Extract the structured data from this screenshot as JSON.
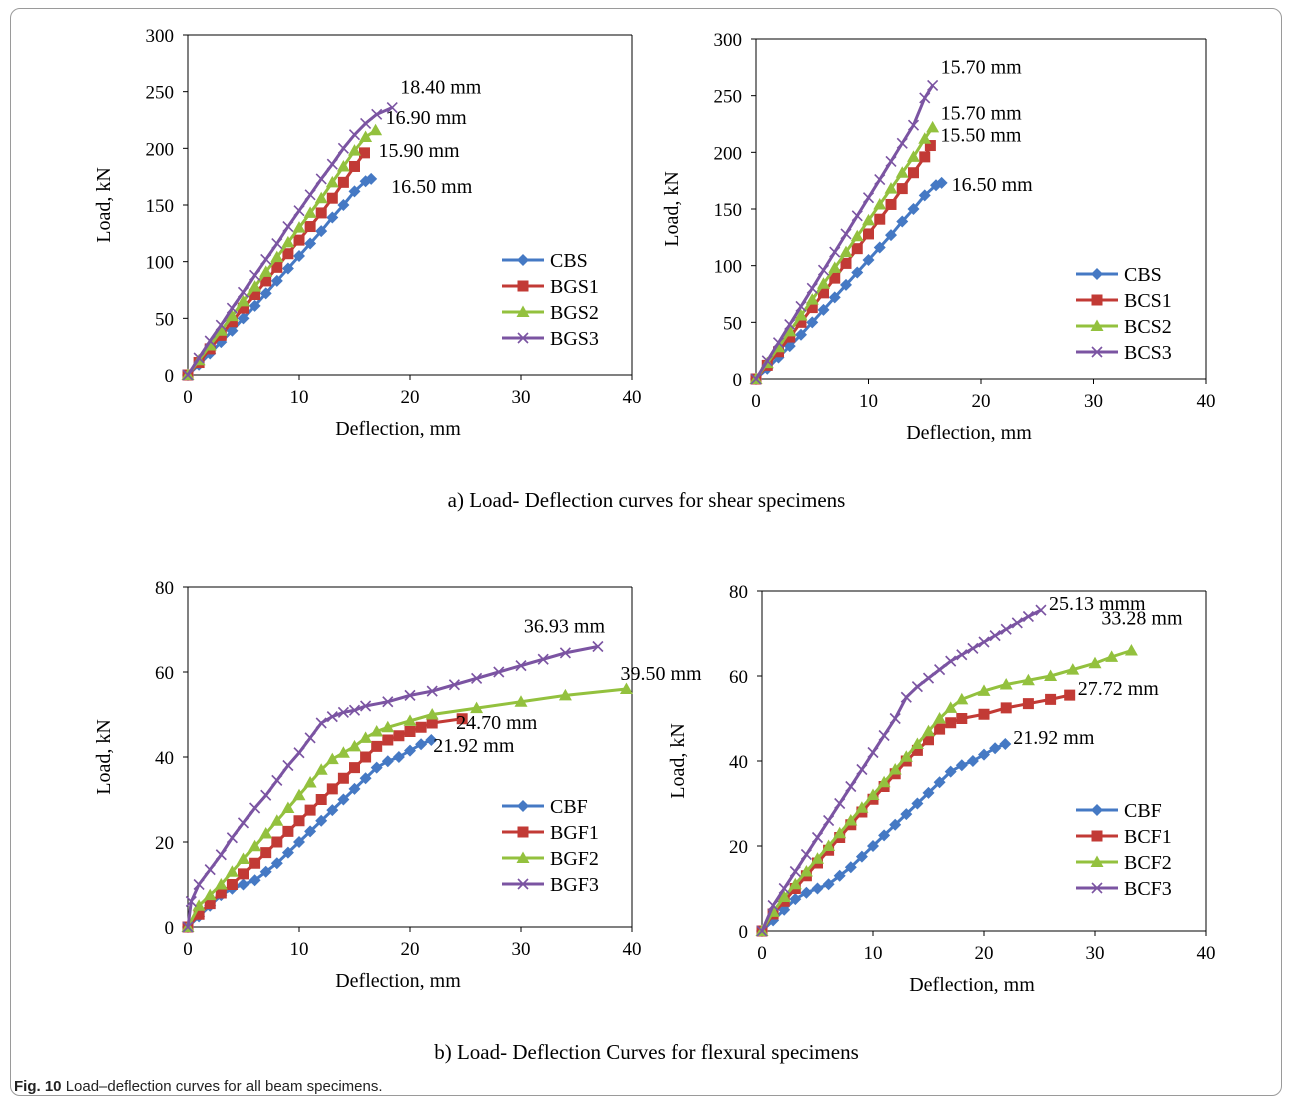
{
  "figure": {
    "label": "Fig. 10",
    "caption": "Load–deflection curves for all beam specimens.",
    "caption_a": "a)   Load- Deflection curves for shear specimens",
    "caption_b": "b)   Load- Deflection Curves for flexural specimens"
  },
  "colors": {
    "s0": "#4579c4",
    "s1": "#c23a35",
    "s2": "#93c13e",
    "s3": "#7b54a2"
  },
  "chart_data": [
    {
      "type": "line",
      "xlabel": "Deflection, mm",
      "ylabel": "Load, kN",
      "xlim": [
        0,
        40
      ],
      "ylim": [
        0,
        300
      ],
      "xticks": [
        0,
        10,
        20,
        30,
        40
      ],
      "yticks": [
        0,
        50,
        100,
        150,
        200,
        250,
        300
      ],
      "legend": "bottom-right",
      "series": [
        {
          "name": "CBS",
          "marker": "diamond",
          "x": [
            0,
            1,
            2,
            3,
            4,
            5,
            6,
            7,
            8,
            9,
            10,
            11,
            12,
            13,
            14,
            15,
            16,
            16.5
          ],
          "y": [
            0,
            9,
            19,
            29,
            39,
            50,
            61,
            72,
            83,
            94,
            105,
            116,
            127,
            139,
            150,
            162,
            171,
            173
          ]
        },
        {
          "name": "BGS1",
          "marker": "square",
          "x": [
            0,
            1,
            2,
            3,
            4,
            5,
            6,
            7,
            8,
            9,
            10,
            11,
            12,
            13,
            14,
            15,
            15.9
          ],
          "y": [
            0,
            11,
            23,
            35,
            47,
            59,
            71,
            83,
            95,
            107,
            119,
            131,
            143,
            156,
            170,
            184,
            196
          ]
        },
        {
          "name": "BGS2",
          "marker": "triangle",
          "x": [
            0,
            1,
            2,
            3,
            4,
            5,
            6,
            7,
            8,
            9,
            10,
            11,
            12,
            13,
            14,
            15,
            16,
            16.9
          ],
          "y": [
            0,
            13,
            26,
            39,
            52,
            65,
            78,
            91,
            104,
            117,
            130,
            143,
            156,
            170,
            184,
            198,
            210,
            216
          ]
        },
        {
          "name": "BGS3",
          "marker": "x",
          "x": [
            0,
            1,
            2,
            3,
            4,
            5,
            6,
            7,
            8,
            9,
            10,
            11,
            12,
            13,
            14,
            15,
            16,
            17,
            18.4
          ],
          "y": [
            0,
            15,
            30,
            44,
            59,
            73,
            88,
            102,
            116,
            131,
            145,
            159,
            173,
            186,
            200,
            212,
            222,
            230,
            236
          ]
        }
      ],
      "annotations": [
        {
          "text": "18.40 mm",
          "x": 18.4,
          "y": 236
        },
        {
          "text": "16.90 mm",
          "x": 16.9,
          "y": 216
        },
        {
          "text": "15.90 mm",
          "x": 15.9,
          "y": 196
        },
        {
          "text": "16.50 mm",
          "x": 16.5,
          "y": 173
        }
      ]
    },
    {
      "type": "line",
      "xlabel": "Deflection, mm",
      "ylabel": "Load,  kN",
      "xlim": [
        0,
        40
      ],
      "ylim": [
        0,
        300
      ],
      "xticks": [
        0,
        10,
        20,
        30,
        40
      ],
      "yticks": [
        0,
        50,
        100,
        150,
        200,
        250,
        300
      ],
      "legend": "bottom-right",
      "series": [
        {
          "name": "CBS",
          "marker": "diamond",
          "x": [
            0,
            1,
            2,
            3,
            4,
            5,
            6,
            7,
            8,
            9,
            10,
            11,
            12,
            13,
            14,
            15,
            16,
            16.5
          ],
          "y": [
            0,
            9,
            19,
            29,
            39,
            50,
            61,
            72,
            83,
            94,
            105,
            116,
            127,
            139,
            150,
            162,
            171,
            173
          ]
        },
        {
          "name": "BCS1",
          "marker": "square",
          "x": [
            0,
            1,
            2,
            3,
            4,
            5,
            6,
            7,
            8,
            9,
            10,
            11,
            12,
            13,
            14,
            15,
            15.5
          ],
          "y": [
            0,
            12,
            24,
            37,
            50,
            63,
            76,
            89,
            102,
            115,
            128,
            141,
            154,
            168,
            182,
            196,
            206
          ]
        },
        {
          "name": "BCS2",
          "marker": "triangle",
          "x": [
            0,
            1,
            2,
            3,
            4,
            5,
            6,
            7,
            8,
            9,
            10,
            11,
            12,
            13,
            14,
            15,
            15.7
          ],
          "y": [
            0,
            14,
            28,
            42,
            56,
            70,
            84,
            98,
            112,
            126,
            140,
            154,
            168,
            182,
            196,
            212,
            222
          ]
        },
        {
          "name": "BCS3",
          "marker": "x",
          "x": [
            0,
            1,
            2,
            3,
            4,
            5,
            6,
            7,
            8,
            9,
            10,
            11,
            12,
            13,
            14,
            15,
            15.7
          ],
          "y": [
            0,
            16,
            32,
            48,
            64,
            80,
            96,
            112,
            128,
            144,
            160,
            176,
            192,
            208,
            224,
            248,
            259
          ]
        }
      ],
      "annotations": [
        {
          "text": "15.70 mm",
          "x": 15.7,
          "y": 259
        },
        {
          "text": "15.70 mm",
          "x": 15.7,
          "y": 222
        },
        {
          "text": "15.50 mm",
          "x": 15.5,
          "y": 206
        },
        {
          "text": "16.50 mm",
          "x": 16.5,
          "y": 173
        }
      ]
    },
    {
      "type": "line",
      "xlabel": "Deflection, mm",
      "ylabel": "Load,  kN",
      "xlim": [
        0,
        40
      ],
      "ylim": [
        0,
        80
      ],
      "xticks": [
        0,
        10,
        20,
        30,
        40
      ],
      "yticks": [
        0,
        20,
        40,
        60,
        80
      ],
      "legend": "bottom-right",
      "series": [
        {
          "name": "CBF",
          "marker": "diamond",
          "x": [
            0,
            1,
            2,
            3,
            4,
            5,
            6,
            7,
            8,
            9,
            10,
            11,
            12,
            13,
            14,
            15,
            16,
            17,
            18,
            19,
            20,
            21,
            21.92
          ],
          "y": [
            0,
            2.5,
            5,
            7.5,
            9,
            10,
            11,
            13,
            15,
            17.5,
            20,
            22.5,
            25,
            27.5,
            30,
            32.5,
            35,
            37.5,
            39,
            40,
            41.5,
            43,
            44
          ]
        },
        {
          "name": "BGF1",
          "marker": "square",
          "x": [
            0,
            1,
            2,
            3,
            4,
            5,
            6,
            7,
            8,
            9,
            10,
            11,
            12,
            13,
            14,
            15,
            16,
            17,
            18,
            19,
            20,
            21,
            22,
            24.7
          ],
          "y": [
            0,
            3,
            5.5,
            8,
            10,
            12.5,
            15,
            17.5,
            20,
            22.5,
            25,
            27.5,
            30,
            32.5,
            35,
            37.5,
            40,
            42.5,
            44,
            45,
            46,
            47,
            48,
            49
          ]
        },
        {
          "name": "BGF2",
          "marker": "triangle",
          "x": [
            0,
            1,
            2,
            3,
            4,
            5,
            6,
            7,
            8,
            9,
            10,
            11,
            12,
            13,
            14,
            15,
            16,
            17,
            18,
            20,
            22,
            26,
            30,
            34,
            39.5
          ],
          "y": [
            0,
            5,
            7.5,
            10,
            13,
            16,
            19,
            22,
            25,
            28,
            31,
            34,
            37,
            39.5,
            41,
            42.5,
            44.5,
            46,
            47,
            48.5,
            50,
            51.5,
            53,
            54.5,
            56
          ]
        },
        {
          "name": "BGF3",
          "marker": "x",
          "x": [
            0,
            0.3,
            1,
            2,
            3,
            4,
            5,
            6,
            7,
            8,
            9,
            10,
            11,
            12,
            13,
            14,
            15,
            16,
            18,
            20,
            22,
            24,
            26,
            28,
            30,
            32,
            34,
            36.93
          ],
          "y": [
            0,
            6,
            10,
            13.5,
            17,
            21,
            24.5,
            28,
            31,
            34.5,
            38,
            41,
            44.5,
            48,
            49.5,
            50.5,
            51,
            52,
            53,
            54.5,
            55.5,
            57,
            58.5,
            60,
            61.5,
            63,
            64.5,
            66
          ]
        }
      ],
      "annotations": [
        {
          "text": "36.93 mm",
          "x": 36.93,
          "y": 66
        },
        {
          "text": "39.50 mm",
          "x": 39.5,
          "y": 56
        },
        {
          "text": "24.70 mm",
          "x": 24.7,
          "y": 49
        },
        {
          "text": "21.92 mm",
          "x": 21.92,
          "y": 44
        }
      ]
    },
    {
      "type": "line",
      "xlabel": "Deflection, mm",
      "ylabel": "Load, kN",
      "xlim": [
        0,
        40
      ],
      "ylim": [
        0,
        80
      ],
      "xticks": [
        0,
        10,
        20,
        30,
        40
      ],
      "yticks": [
        0,
        20,
        40,
        60,
        80
      ],
      "legend": "bottom-right",
      "series": [
        {
          "name": "CBF",
          "marker": "diamond",
          "x": [
            0,
            1,
            2,
            3,
            4,
            5,
            6,
            7,
            8,
            9,
            10,
            11,
            12,
            13,
            14,
            15,
            16,
            17,
            18,
            19,
            20,
            21,
            21.92
          ],
          "y": [
            0,
            2.5,
            5,
            7.5,
            9,
            10,
            11,
            13,
            15,
            17.5,
            20,
            22.5,
            25,
            27.5,
            30,
            32.5,
            35,
            37.5,
            39,
            40,
            41.5,
            43,
            44
          ]
        },
        {
          "name": "BCF1",
          "marker": "square",
          "x": [
            0,
            1,
            2,
            3,
            4,
            5,
            6,
            7,
            8,
            9,
            10,
            11,
            12,
            13,
            14,
            15,
            16,
            17,
            18,
            20,
            22,
            24,
            26,
            27.72
          ],
          "y": [
            0,
            4,
            7,
            10,
            13,
            16,
            19,
            22,
            25,
            28,
            31,
            34,
            37,
            40,
            42.5,
            45,
            47.5,
            49,
            50,
            51,
            52.5,
            53.5,
            54.5,
            55.5
          ]
        },
        {
          "name": "BCF2",
          "marker": "triangle",
          "x": [
            0,
            1,
            2,
            3,
            4,
            5,
            6,
            7,
            8,
            9,
            10,
            11,
            12,
            13,
            14,
            15,
            16,
            17,
            18,
            20,
            22,
            24,
            26,
            28,
            30,
            31.5,
            33.28
          ],
          "y": [
            0,
            4.5,
            8,
            11,
            14,
            17,
            20,
            23,
            26,
            29,
            32,
            35,
            38,
            41,
            44,
            47,
            50,
            52.5,
            54.5,
            56.5,
            58,
            59,
            60,
            61.5,
            63,
            64.5,
            66
          ]
        },
        {
          "name": "BCF3",
          "marker": "x",
          "x": [
            0,
            1,
            2,
            3,
            4,
            5,
            6,
            7,
            8,
            9,
            10,
            11,
            12,
            13,
            14,
            15,
            16,
            17,
            18,
            19,
            20,
            21,
            22,
            23,
            24,
            25.13
          ],
          "y": [
            0,
            6,
            10,
            14,
            18,
            22,
            26,
            30,
            34,
            38,
            42,
            46,
            50,
            55,
            57.5,
            59.5,
            61.5,
            63.5,
            65,
            66.5,
            68,
            69.5,
            71,
            72.5,
            74,
            75.5
          ]
        }
      ],
      "annotations": [
        {
          "text": "25.13 mmm",
          "x": 25.13,
          "y": 75.5
        },
        {
          "text": "33.28 mm",
          "x": 33.28,
          "y": 66
        },
        {
          "text": "27.72 mm",
          "x": 27.72,
          "y": 55.5
        },
        {
          "text": "21.92 mm",
          "x": 21.92,
          "y": 44
        }
      ]
    }
  ]
}
